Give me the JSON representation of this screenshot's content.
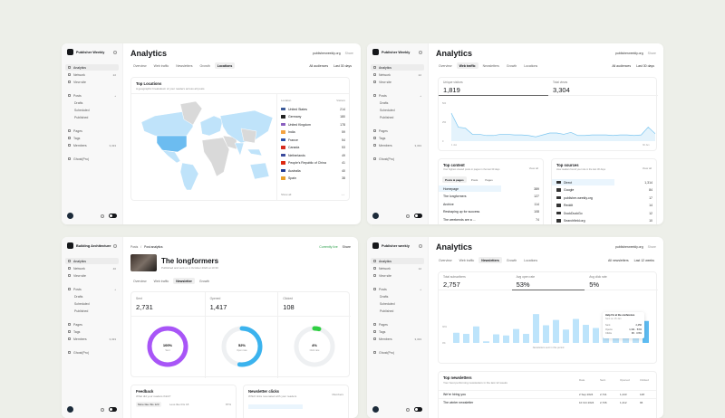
{
  "colors": {
    "background": "#edefe9",
    "accent_blue": "#6cbcf0",
    "light_blue": "#bfe3fa",
    "purple": "#a855f7",
    "green": "#30cf43"
  },
  "panels": [
    {
      "sidebar": {
        "brand": "Publisher Weekly",
        "items": [
          {
            "label": "Analytics",
            "icon": "chart-icon",
            "active": true
          },
          {
            "label": "Network",
            "icon": "network-icon",
            "count": "22"
          },
          {
            "label": "View site",
            "icon": "browser-icon"
          },
          {
            "label": "Posts",
            "icon": "pen-icon",
            "plus": true,
            "gap": true
          },
          {
            "label": "Drafts",
            "sub": true
          },
          {
            "label": "Scheduled",
            "sub": true
          },
          {
            "label": "Published",
            "sub": true
          },
          {
            "label": "Pages",
            "icon": "page-icon",
            "gap": true
          },
          {
            "label": "Tags",
            "icon": "tag-icon"
          },
          {
            "label": "Members",
            "icon": "members-icon",
            "count": "3,333"
          },
          {
            "label": "Ghost(Pro)",
            "icon": "ghost-icon",
            "gap": true
          }
        ]
      },
      "title": "Analytics",
      "site": "publisherweekly.org",
      "share": "Share",
      "tabs": [
        "Overview",
        "Web traffic",
        "Newsletters",
        "Growth",
        "Locations"
      ],
      "active_tab": 4,
      "audience": "All audiences",
      "range": "Last 30 days",
      "locations": {
        "title": "Top Locations",
        "subtitle": "A geographic breakdown of your readers across all posts",
        "col_location": "Location",
        "col_visitors": "Visitors",
        "footer": "Show all",
        "rows": [
          {
            "name": "United States",
            "value": "214",
            "flag": "#3b5998"
          },
          {
            "name": "Germany",
            "value": "180",
            "flag": "#222222"
          },
          {
            "name": "United Kingdom",
            "value": "178",
            "flag": "#8a5fbf"
          },
          {
            "name": "India",
            "value": "59",
            "flag": "#f4a340"
          },
          {
            "name": "France",
            "value": "54",
            "flag": "#2b4fa8"
          },
          {
            "name": "Canada",
            "value": "53",
            "flag": "#d52b1e"
          },
          {
            "name": "Netherlands",
            "value": "49",
            "flag": "#3a4a9c"
          },
          {
            "name": "People's Republic of China",
            "value": "41",
            "flag": "#de2910"
          },
          {
            "name": "Australia",
            "value": "40",
            "flag": "#1f3a93"
          },
          {
            "name": "Spain",
            "value": "38",
            "flag": "#e8a02a"
          }
        ]
      }
    },
    {
      "sidebar": {
        "brand": "Publisher Weekly",
        "items": [
          {
            "label": "Analytics",
            "icon": "chart-icon",
            "active": true
          },
          {
            "label": "Network",
            "icon": "network-icon",
            "count": "22"
          },
          {
            "label": "View site",
            "icon": "browser-icon"
          },
          {
            "label": "Posts",
            "icon": "pen-icon",
            "plus": true,
            "gap": true
          },
          {
            "label": "Drafts",
            "sub": true
          },
          {
            "label": "Scheduled",
            "sub": true
          },
          {
            "label": "Published",
            "sub": true
          },
          {
            "label": "Pages",
            "icon": "page-icon",
            "gap": true
          },
          {
            "label": "Tags",
            "icon": "tag-icon"
          },
          {
            "label": "Members",
            "icon": "members-icon",
            "count": "3,333"
          },
          {
            "label": "Ghost(Pro)",
            "icon": "ghost-icon",
            "gap": true
          }
        ]
      },
      "title": "Analytics",
      "site": "publisherweekly.org",
      "share": "Share",
      "tabs": [
        "Overview",
        "Web traffic",
        "Newsletters",
        "Growth",
        "Locations"
      ],
      "active_tab": 1,
      "audience": "All audiences",
      "range": "Last 30 days",
      "stats": [
        {
          "label": "Unique visitors",
          "value": "1,819"
        },
        {
          "label": "Total views",
          "value": "3,304"
        }
      ],
      "traffic_chart": {
        "y_ticks": [
          "500",
          "250",
          "0"
        ],
        "x_ticks": [
          "1 Jun",
          "30 Jun"
        ],
        "values": [
          369,
          184,
          172,
          90,
          90,
          74,
          74,
          90,
          90,
          82,
          82,
          74,
          57,
          82,
          107,
          107,
          90,
          115,
          74,
          74,
          82,
          82,
          82,
          74,
          82,
          82,
          74,
          82,
          184,
          98
        ],
        "ymax": 500
      },
      "top_content": {
        "title": "Top content",
        "subtitle": "Your highest viewed posts or pages in the last 30 days",
        "link": "View all",
        "tabs": [
          "Posts & pages",
          "Posts",
          "Pages"
        ],
        "rows": [
          {
            "name": "Homepage",
            "value": "389"
          },
          {
            "name": "The longformers",
            "value": "127"
          },
          {
            "name": "Archive",
            "value": "114"
          },
          {
            "name": "Reshaping up for success",
            "value": "108"
          },
          {
            "name": "The weekends are a ...",
            "value": "74"
          }
        ]
      },
      "top_sources": {
        "title": "Top sources",
        "subtitle": "How readers found your site in the last 30 days",
        "link": "View all",
        "rows": [
          {
            "name": "Direct",
            "value": "1,314"
          },
          {
            "name": "Google",
            "value": "84"
          },
          {
            "name": "publisher-weekly.org",
            "value": "17"
          },
          {
            "name": "Reddit",
            "value": "14"
          },
          {
            "name": "DuckDuckGo",
            "value": "12"
          },
          {
            "name": "Searchfield.org",
            "value": "10"
          }
        ]
      }
    },
    {
      "sidebar": {
        "brand": "Building Architecture",
        "items": [
          {
            "label": "Analytics",
            "icon": "chart-icon",
            "active": true
          },
          {
            "label": "Network",
            "icon": "network-icon",
            "count": "40"
          },
          {
            "label": "View site",
            "icon": "browser-icon"
          },
          {
            "label": "Posts",
            "icon": "pen-icon",
            "plus": true,
            "gap": true
          },
          {
            "label": "Drafts",
            "sub": true
          },
          {
            "label": "Scheduled",
            "sub": true
          },
          {
            "label": "Published",
            "sub": true
          },
          {
            "label": "Pages",
            "icon": "page-icon",
            "gap": true
          },
          {
            "label": "Tags",
            "icon": "tag-icon"
          },
          {
            "label": "Members",
            "icon": "members-icon",
            "count": "3,333"
          },
          {
            "label": "Ghost(Pro)",
            "icon": "ghost-icon",
            "gap": true
          }
        ]
      },
      "breadcrumb": [
        "Posts",
        "Post analytics"
      ],
      "status": "Currently live",
      "share": "Share",
      "post_title": "The longformers",
      "post_subtitle": "Published and sent on 1 October 2024 at 10:30",
      "tabs": [
        "Overview",
        "Web traffic",
        "Newsletter",
        "Growth"
      ],
      "active_tab": 2,
      "stats": [
        {
          "label": "Sent",
          "value": "2,731",
          "pct": 100,
          "pct_label": "100%",
          "sub": "Sent"
        },
        {
          "label": "Opened",
          "value": "1,417",
          "pct": 52,
          "pct_label": "52%",
          "sub": "Open rate"
        },
        {
          "label": "Clicked",
          "value": "108",
          "pct": 4,
          "pct_label": "4%",
          "sub": "Click rate"
        }
      ],
      "feedback": {
        "title": "Feedback",
        "subtitle": "What did your readers think?",
        "more": "More like this 123",
        "less": "Less like this 18",
        "pct": "87%"
      },
      "clicks": {
        "title": "Newsletter clicks",
        "subtitle": "Which links resonated with your readers",
        "col": "Members"
      }
    },
    {
      "sidebar": {
        "brand": "Publisher weekly",
        "items": [
          {
            "label": "Analytics",
            "icon": "chart-icon",
            "active": true
          },
          {
            "label": "Network",
            "icon": "network-icon",
            "count": "12"
          },
          {
            "label": "View site",
            "icon": "browser-icon"
          },
          {
            "label": "Posts",
            "icon": "pen-icon",
            "plus": true,
            "gap": true
          },
          {
            "label": "Drafts",
            "sub": true
          },
          {
            "label": "Scheduled",
            "sub": true
          },
          {
            "label": "Published",
            "sub": true
          },
          {
            "label": "Pages",
            "icon": "page-icon",
            "gap": true
          },
          {
            "label": "Tags",
            "icon": "tag-icon"
          },
          {
            "label": "Members",
            "icon": "members-icon",
            "count": "3,333"
          },
          {
            "label": "Ghost(Pro)",
            "icon": "ghost-icon",
            "gap": true
          }
        ]
      },
      "title": "Analytics",
      "site": "publisherweekly.org",
      "share": "Share",
      "tabs": [
        "Overview",
        "Web traffic",
        "Newsletters",
        "Growth",
        "Locations"
      ],
      "active_tab": 2,
      "audience": "All newsletters",
      "range": "Last 12 weeks",
      "stats": [
        {
          "label": "Total subscribers",
          "value": "2,757"
        },
        {
          "label": "Avg open rate",
          "value": "53%"
        },
        {
          "label": "Avg click rate",
          "value": "5%"
        }
      ],
      "bar_chart": {
        "y_ticks": [
          "100%",
          "30%",
          "0%"
        ],
        "caption": "Newsletters sent in this period",
        "values": [
          19,
          17,
          31,
          3,
          16,
          14,
          26,
          17,
          54,
          33,
          43,
          25,
          45,
          34,
          28,
          52,
          38,
          14,
          38,
          41
        ],
        "ymax": 100
      },
      "tooltip": {
        "title": "Help I'm at the conference",
        "date": "Sent on 15 Jan",
        "rows": [
          {
            "k": "Sent",
            "v": "2,456"
          },
          {
            "k": "Opens",
            "v": "1,311 · 53%"
          },
          {
            "k": "Clicks",
            "v": "96 · 3.9%"
          }
        ]
      },
      "top_newsletters": {
        "title": "Top newsletters",
        "subtitle": "Your best performing newsletters in the last 12 weeks",
        "cols": [
          "Date",
          "Sent",
          "Opened",
          "Clicked"
        ],
        "rows": [
          {
            "name": "We're hiring you",
            "date": "2 Sep 2024",
            "sent": "2,741",
            "opened": "1,443",
            "clicked": "148"
          },
          {
            "name": "The winter newsletter",
            "date": "10 Oct 2024",
            "sent": "2,736",
            "opened": "1,412",
            "clicked": "96"
          }
        ]
      }
    }
  ]
}
